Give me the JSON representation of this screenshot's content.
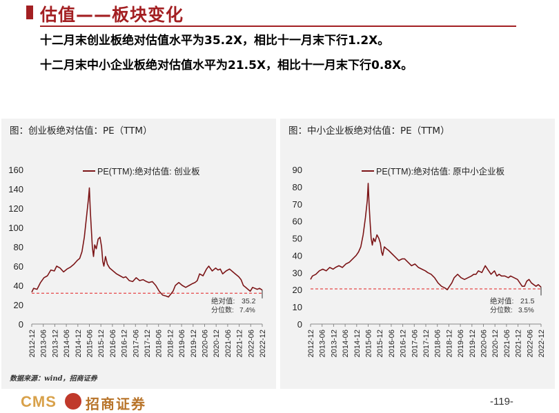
{
  "header": {
    "title": "估值——板块变化",
    "line1": "十二月末创业板绝对估值水平为35.2X，相比十一月末下行1.2X。",
    "line2": "十二月末中小企业板绝对估值水平为21.5X，相比十一月末下行0.8X。"
  },
  "footer": {
    "source": "数据来源：wind，招商证券",
    "logo_text": "CMS",
    "logo_name": "招商证券",
    "page_number": "-119-"
  },
  "colors": {
    "series": "#7b1416",
    "reference": "#e31a1c",
    "accent": "#a31f22"
  },
  "chart_data": [
    {
      "type": "line",
      "panel_title": "图：创业板绝对估值：PE（TTM）",
      "legend": "PE(TTM):绝对估值: 创业板",
      "legend_placement": "top-center",
      "ylim": [
        0,
        160
      ],
      "yticks": [
        "0",
        "20",
        "40",
        "60",
        "80",
        "100",
        "120",
        "140",
        "160"
      ],
      "xticks": [
        "2012-12",
        "2013-06",
        "2013-12",
        "2014-06",
        "2014-12",
        "2015-06",
        "2015-12",
        "2016-06",
        "2016-12",
        "2017-06",
        "2017-12",
        "2018-06",
        "2018-12",
        "2019-06",
        "2019-12",
        "2020-06",
        "2020-12",
        "2021-06",
        "2021-12",
        "2022-06",
        "2022-12"
      ],
      "xlim": [
        2012.92,
        2022.92
      ],
      "reference_line": 32,
      "annotation_label": "绝对值:",
      "annotation_value": "35.2",
      "percentile_label": "分位数:",
      "percentile_value": "7.4%",
      "series": [
        {
          "x": [
            2012.92,
            2013.0,
            2013.15,
            2013.3,
            2013.45,
            2013.6,
            2013.75,
            2013.9,
            2014.0,
            2014.15,
            2014.3,
            2014.45,
            2014.6,
            2014.75,
            2014.9,
            2015.0,
            2015.1,
            2015.2,
            2015.3,
            2015.38,
            2015.42,
            2015.46,
            2015.5,
            2015.55,
            2015.6,
            2015.65,
            2015.72,
            2015.8,
            2015.88,
            2015.95,
            2016.0,
            2016.05,
            2016.12,
            2016.2,
            2016.3,
            2016.45,
            2016.6,
            2016.75,
            2016.9,
            2017.0,
            2017.15,
            2017.3,
            2017.45,
            2017.6,
            2017.75,
            2017.9,
            2018.0,
            2018.15,
            2018.3,
            2018.45,
            2018.6,
            2018.75,
            2018.85,
            2018.95,
            2019.05,
            2019.15,
            2019.3,
            2019.45,
            2019.6,
            2019.75,
            2019.9,
            2020.0,
            2020.1,
            2020.2,
            2020.35,
            2020.5,
            2020.6,
            2020.75,
            2020.9,
            2021.0,
            2021.1,
            2021.2,
            2021.35,
            2021.5,
            2021.6,
            2021.75,
            2021.9,
            2022.0,
            2022.1,
            2022.2,
            2022.3,
            2022.4,
            2022.5,
            2022.6,
            2022.7,
            2022.8,
            2022.92
          ],
          "values": [
            33,
            37,
            36,
            43,
            48,
            50,
            56,
            55,
            60,
            58,
            54,
            57,
            59,
            62,
            66,
            68,
            75,
            90,
            112,
            130,
            141,
            118,
            100,
            80,
            70,
            82,
            78,
            88,
            90,
            80,
            65,
            60,
            70,
            62,
            58,
            55,
            52,
            50,
            48,
            49,
            45,
            44,
            48,
            45,
            46,
            44,
            43,
            44,
            40,
            34,
            30,
            29,
            28,
            31,
            34,
            40,
            43,
            40,
            38,
            40,
            42,
            43,
            45,
            52,
            50,
            57,
            60,
            55,
            58,
            56,
            57,
            52,
            55,
            57,
            55,
            52,
            49,
            46,
            40,
            38,
            36,
            34,
            38,
            37,
            36,
            37,
            35.2
          ]
        }
      ]
    },
    {
      "type": "line",
      "panel_title": "图：中小企业板绝对估值：PE（TTM）",
      "legend": "PE(TTM):绝对估值: 原中小企业板",
      "legend_placement": "top-center",
      "ylim": [
        0,
        90
      ],
      "yticks": [
        "0",
        "10",
        "20",
        "30",
        "40",
        "50",
        "60",
        "70",
        "80",
        "90"
      ],
      "xticks": [
        "2012-12",
        "2013-06",
        "2013-12",
        "2014-06",
        "2014-12",
        "2015-06",
        "2015-12",
        "2016-06",
        "2016-12",
        "2017-06",
        "2017-12",
        "2018-06",
        "2018-12",
        "2019-06",
        "2019-12",
        "2020-06",
        "2020-12",
        "2021-06",
        "2021-12",
        "2022-06",
        "2022-12"
      ],
      "xlim": [
        2012.92,
        2022.92
      ],
      "reference_line": 20.5,
      "annotation_label": "绝对值:",
      "annotation_value": "21.5",
      "percentile_label": "分位数:",
      "percentile_value": "3.5%",
      "series": [
        {
          "x": [
            2012.92,
            2013.0,
            2013.15,
            2013.3,
            2013.45,
            2013.6,
            2013.75,
            2013.9,
            2014.0,
            2014.15,
            2014.3,
            2014.45,
            2014.6,
            2014.75,
            2014.9,
            2015.0,
            2015.1,
            2015.2,
            2015.3,
            2015.38,
            2015.42,
            2015.46,
            2015.5,
            2015.55,
            2015.6,
            2015.65,
            2015.72,
            2015.8,
            2015.88,
            2015.95,
            2016.0,
            2016.05,
            2016.12,
            2016.2,
            2016.3,
            2016.45,
            2016.6,
            2016.75,
            2016.9,
            2017.0,
            2017.15,
            2017.3,
            2017.45,
            2017.6,
            2017.75,
            2017.9,
            2018.0,
            2018.15,
            2018.3,
            2018.45,
            2018.6,
            2018.75,
            2018.85,
            2018.95,
            2019.05,
            2019.15,
            2019.3,
            2019.45,
            2019.6,
            2019.75,
            2019.9,
            2020.0,
            2020.1,
            2020.2,
            2020.35,
            2020.5,
            2020.6,
            2020.75,
            2020.9,
            2021.0,
            2021.1,
            2021.2,
            2021.35,
            2021.5,
            2021.6,
            2021.75,
            2021.9,
            2022.0,
            2022.1,
            2022.2,
            2022.3,
            2022.4,
            2022.5,
            2022.6,
            2022.7,
            2022.8,
            2022.92
          ],
          "values": [
            26,
            28,
            29,
            31,
            32,
            31,
            33,
            32,
            33,
            34,
            33,
            35,
            36,
            38,
            40,
            42,
            45,
            52,
            62,
            72,
            82,
            70,
            60,
            50,
            46,
            50,
            48,
            52,
            50,
            47,
            42,
            40,
            45,
            44,
            43,
            41,
            39,
            37,
            38,
            38,
            36,
            34,
            35,
            33,
            32,
            31,
            30,
            29,
            27,
            24,
            22,
            21,
            20,
            22,
            24,
            27,
            29,
            27,
            26,
            27,
            28,
            29,
            29,
            31,
            30,
            34,
            32,
            29,
            31,
            28,
            29,
            28,
            28,
            27,
            28,
            27,
            26,
            24,
            22,
            22,
            25,
            26,
            24,
            23,
            22,
            23,
            21.5
          ]
        }
      ]
    }
  ]
}
